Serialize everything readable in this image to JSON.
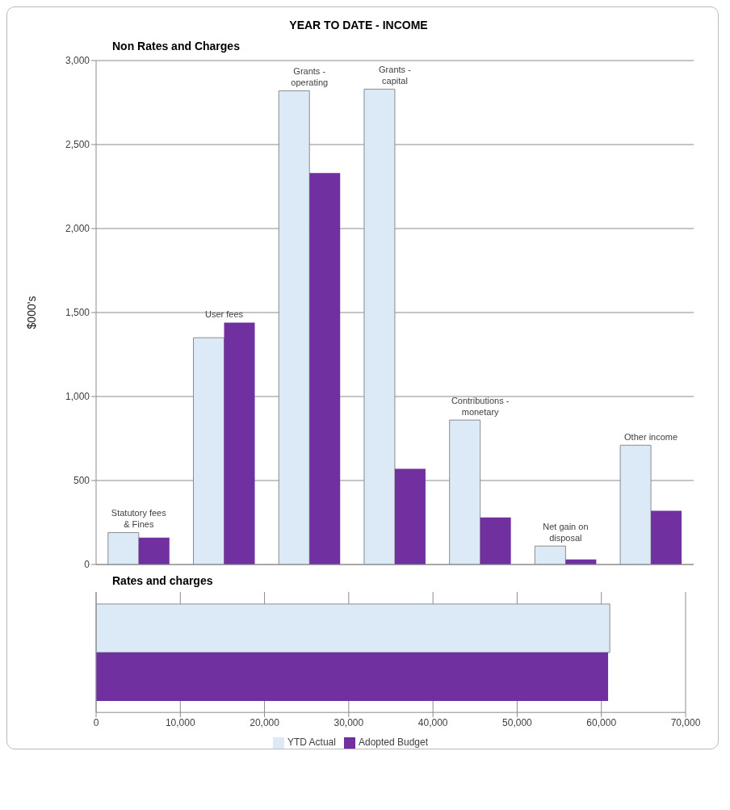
{
  "chart_data": [
    {
      "type": "bar",
      "title": "YEAR TO DATE - INCOME",
      "subtitle": "Non Rates and Charges",
      "ylabel": "$000's",
      "categories": [
        "Statutory fees & Fines",
        "User fees",
        "Grants - operating",
        "Grants - capital",
        "Contributions - monetary",
        "Net gain on disposal",
        "Other income"
      ],
      "series": [
        {
          "color": "#dce9f7",
          "values": [
            190,
            1350,
            2820,
            2830,
            860,
            110,
            710
          ]
        },
        {
          "color": "#7030a0",
          "values": [
            160,
            1440,
            2330,
            570,
            280,
            30,
            320
          ]
        }
      ],
      "ylim": [
        0,
        3000
      ],
      "yticks": [
        0,
        500,
        {
          "value": 1000,
          "label": "1,000"
        },
        {
          "value": 1500,
          "label": "1,500"
        },
        {
          "value": 2000,
          "label": "2,000"
        },
        {
          "value": 2500,
          "label": "2,500"
        },
        {
          "value": 3000,
          "label": "3,000"
        }
      ],
      "grid": "y",
      "legend": false
    },
    {
      "type": "bar",
      "title": "Rates and charges",
      "orientation": "horizontal",
      "categories": [
        null
      ],
      "series": [
        {
          "name": "YTD Actual",
          "color": "#dce9f7",
          "values": [
            61000
          ]
        },
        {
          "name": "Adopted Budget",
          "color": "#7030a0",
          "values": [
            60800
          ]
        }
      ],
      "xlim": [
        0,
        70000
      ],
      "xticks": [
        0,
        {
          "value": 10000,
          "label": "10,000"
        },
        {
          "value": 20000,
          "label": "20,000"
        },
        {
          "value": 30000,
          "label": "30,000"
        },
        {
          "value": 40000,
          "label": "40,000"
        },
        {
          "value": 50000,
          "label": "50,000"
        },
        {
          "value": 60000,
          "label": "60,000"
        },
        {
          "value": 70000,
          "label": "70,000"
        }
      ],
      "grid": "x",
      "legend": "bottom"
    }
  ]
}
